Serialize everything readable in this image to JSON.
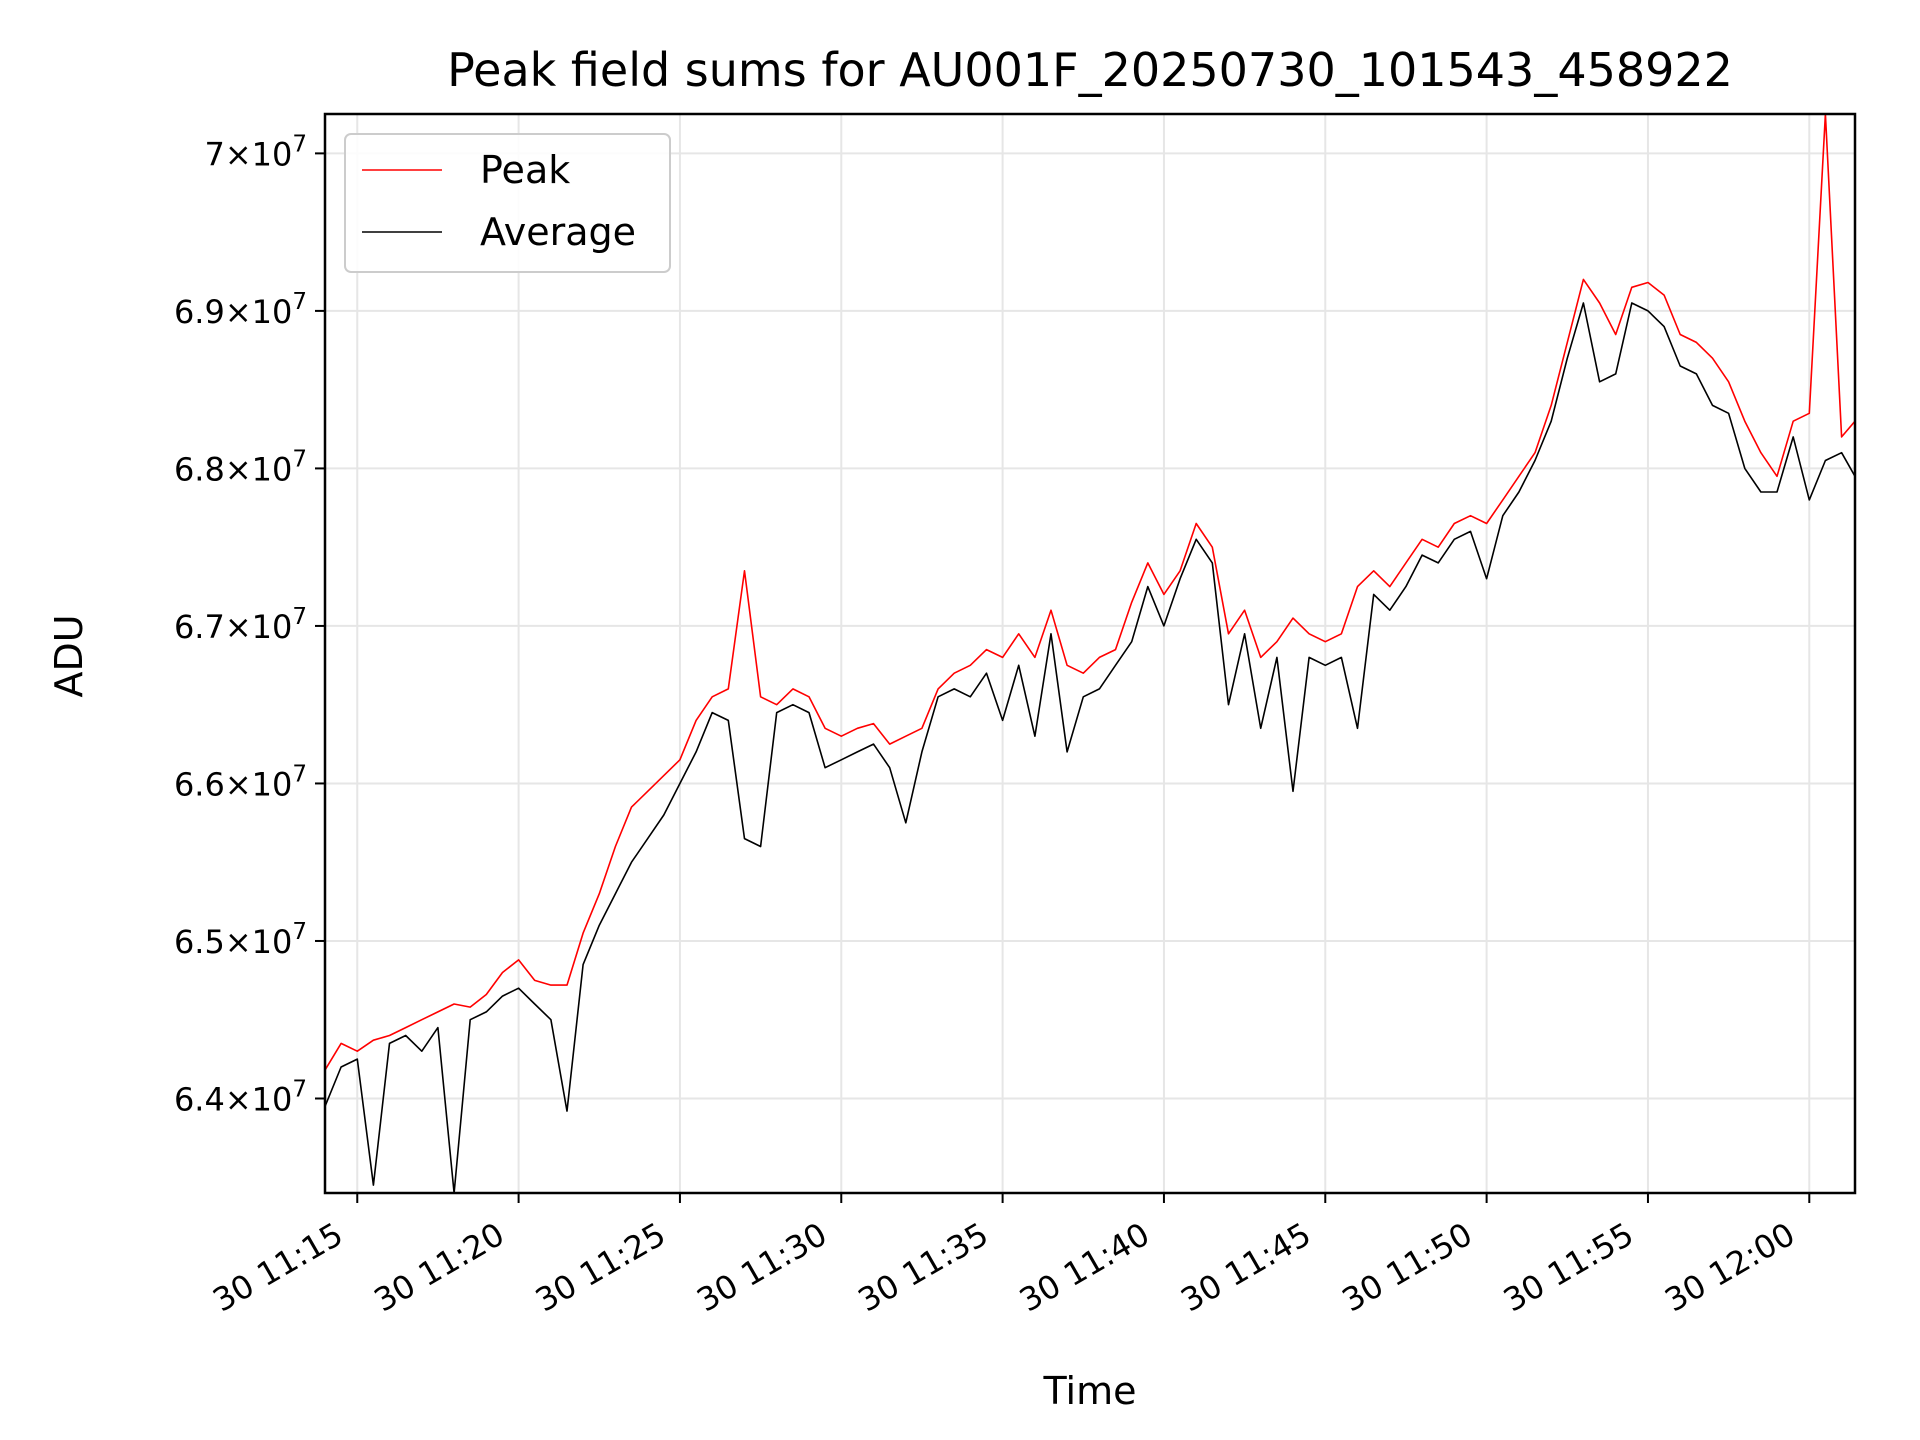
{
  "chart_data": {
    "type": "line",
    "title": "Peak field sums for AU001F_20250730_101543_458922",
    "xlabel": "Time",
    "ylabel": "ADU",
    "x_ticks": [
      "30 11:15",
      "30 11:20",
      "30 11:25",
      "30 11:30",
      "30 11:35",
      "30 11:40",
      "30 11:45",
      "30 11:50",
      "30 11:55",
      "30 12:00"
    ],
    "y_ticks": [
      {
        "mantissa": "6.4",
        "exp": "7"
      },
      {
        "mantissa": "6.5",
        "exp": "7"
      },
      {
        "mantissa": "6.6",
        "exp": "7"
      },
      {
        "mantissa": "6.7",
        "exp": "7"
      },
      {
        "mantissa": "6.8",
        "exp": "7"
      },
      {
        "mantissa": "6.9",
        "exp": "7"
      },
      {
        "mantissa": "7",
        "exp": "7"
      }
    ],
    "y_tick_values": [
      64000000,
      65000000,
      66000000,
      67000000,
      68000000,
      69000000,
      70000000
    ],
    "x_range": [
      "2025-07-30 11:14",
      "2025-07-30 12:01:25"
    ],
    "ylim": [
      63400000,
      70250000
    ],
    "grid": true,
    "legend_position": "upper-left",
    "series": [
      {
        "name": "Peak",
        "color": "#ff0000",
        "points": [
          [
            "11:14:00",
            64.18
          ],
          [
            "11:14:30",
            64.35
          ],
          [
            "11:15:00",
            64.3
          ],
          [
            "11:15:30",
            64.37
          ],
          [
            "11:16:00",
            64.4
          ],
          [
            "11:16:30",
            64.45
          ],
          [
            "11:17:00",
            64.5
          ],
          [
            "11:17:30",
            64.55
          ],
          [
            "11:18:00",
            64.6
          ],
          [
            "11:18:30",
            64.58
          ],
          [
            "11:19:00",
            64.66
          ],
          [
            "11:19:30",
            64.8
          ],
          [
            "11:20:00",
            64.88
          ],
          [
            "11:20:30",
            64.75
          ],
          [
            "11:21:00",
            64.72
          ],
          [
            "11:21:30",
            64.72
          ],
          [
            "11:22:00",
            65.05
          ],
          [
            "11:22:30",
            65.3
          ],
          [
            "11:23:00",
            65.6
          ],
          [
            "11:23:30",
            65.85
          ],
          [
            "11:24:00",
            65.95
          ],
          [
            "11:24:30",
            66.05
          ],
          [
            "11:25:00",
            66.15
          ],
          [
            "11:25:30",
            66.4
          ],
          [
            "11:26:00",
            66.55
          ],
          [
            "11:26:30",
            66.6
          ],
          [
            "11:27:00",
            67.35
          ],
          [
            "11:27:30",
            66.55
          ],
          [
            "11:28:00",
            66.5
          ],
          [
            "11:28:30",
            66.6
          ],
          [
            "11:29:00",
            66.55
          ],
          [
            "11:29:30",
            66.35
          ],
          [
            "11:30:00",
            66.3
          ],
          [
            "11:30:30",
            66.35
          ],
          [
            "11:31:00",
            66.38
          ],
          [
            "11:31:30",
            66.25
          ],
          [
            "11:32:00",
            66.3
          ],
          [
            "11:32:30",
            66.35
          ],
          [
            "11:33:00",
            66.6
          ],
          [
            "11:33:30",
            66.7
          ],
          [
            "11:34:00",
            66.75
          ],
          [
            "11:34:30",
            66.85
          ],
          [
            "11:35:00",
            66.8
          ],
          [
            "11:35:30",
            66.95
          ],
          [
            "11:36:00",
            66.8
          ],
          [
            "11:36:30",
            67.1
          ],
          [
            "11:37:00",
            66.75
          ],
          [
            "11:37:30",
            66.7
          ],
          [
            "11:38:00",
            66.8
          ],
          [
            "11:38:30",
            66.85
          ],
          [
            "11:39:00",
            67.15
          ],
          [
            "11:39:30",
            67.4
          ],
          [
            "11:40:00",
            67.2
          ],
          [
            "11:40:30",
            67.35
          ],
          [
            "11:41:00",
            67.65
          ],
          [
            "11:41:30",
            67.5
          ],
          [
            "11:42:00",
            66.95
          ],
          [
            "11:42:30",
            67.1
          ],
          [
            "11:43:00",
            66.8
          ],
          [
            "11:43:30",
            66.9
          ],
          [
            "11:44:00",
            67.05
          ],
          [
            "11:44:30",
            66.95
          ],
          [
            "11:45:00",
            66.9
          ],
          [
            "11:45:30",
            66.95
          ],
          [
            "11:46:00",
            67.25
          ],
          [
            "11:46:30",
            67.35
          ],
          [
            "11:47:00",
            67.25
          ],
          [
            "11:47:30",
            67.4
          ],
          [
            "11:48:00",
            67.55
          ],
          [
            "11:48:30",
            67.5
          ],
          [
            "11:49:00",
            67.65
          ],
          [
            "11:49:30",
            67.7
          ],
          [
            "11:50:00",
            67.65
          ],
          [
            "11:50:30",
            67.8
          ],
          [
            "11:51:00",
            67.95
          ],
          [
            "11:51:30",
            68.1
          ],
          [
            "11:52:00",
            68.4
          ],
          [
            "11:52:30",
            68.8
          ],
          [
            "11:53:00",
            69.2
          ],
          [
            "11:53:30",
            69.05
          ],
          [
            "11:54:00",
            68.85
          ],
          [
            "11:54:30",
            69.15
          ],
          [
            "11:55:00",
            69.18
          ],
          [
            "11:55:30",
            69.1
          ],
          [
            "11:56:00",
            68.85
          ],
          [
            "11:56:30",
            68.8
          ],
          [
            "11:57:00",
            68.7
          ],
          [
            "11:57:30",
            68.55
          ],
          [
            "11:58:00",
            68.3
          ],
          [
            "11:58:30",
            68.1
          ],
          [
            "11:59:00",
            67.95
          ],
          [
            "11:59:30",
            68.3
          ],
          [
            "12:00:00",
            68.35
          ],
          [
            "12:00:30",
            70.25
          ],
          [
            "12:01:00",
            68.2
          ],
          [
            "12:01:25",
            68.3
          ]
        ]
      },
      {
        "name": "Average",
        "color": "#000000",
        "points": [
          [
            "11:14:00",
            63.95
          ],
          [
            "11:14:30",
            64.2
          ],
          [
            "11:15:00",
            64.25
          ],
          [
            "11:15:30",
            63.45
          ],
          [
            "11:16:00",
            64.35
          ],
          [
            "11:16:30",
            64.4
          ],
          [
            "11:17:00",
            64.3
          ],
          [
            "11:17:30",
            64.45
          ],
          [
            "11:18:00",
            63.4
          ],
          [
            "11:18:30",
            64.5
          ],
          [
            "11:19:00",
            64.55
          ],
          [
            "11:19:30",
            64.65
          ],
          [
            "11:20:00",
            64.7
          ],
          [
            "11:20:30",
            64.6
          ],
          [
            "11:21:00",
            64.5
          ],
          [
            "11:21:30",
            63.92
          ],
          [
            "11:22:00",
            64.85
          ],
          [
            "11:22:30",
            65.1
          ],
          [
            "11:23:00",
            65.3
          ],
          [
            "11:23:30",
            65.5
          ],
          [
            "11:24:00",
            65.65
          ],
          [
            "11:24:30",
            65.8
          ],
          [
            "11:25:00",
            66.0
          ],
          [
            "11:25:30",
            66.2
          ],
          [
            "11:26:00",
            66.45
          ],
          [
            "11:26:30",
            66.4
          ],
          [
            "11:27:00",
            65.65
          ],
          [
            "11:27:30",
            65.6
          ],
          [
            "11:28:00",
            66.45
          ],
          [
            "11:28:30",
            66.5
          ],
          [
            "11:29:00",
            66.45
          ],
          [
            "11:29:30",
            66.1
          ],
          [
            "11:30:00",
            66.15
          ],
          [
            "11:30:30",
            66.2
          ],
          [
            "11:31:00",
            66.25
          ],
          [
            "11:31:30",
            66.1
          ],
          [
            "11:32:00",
            65.75
          ],
          [
            "11:32:30",
            66.2
          ],
          [
            "11:33:00",
            66.55
          ],
          [
            "11:33:30",
            66.6
          ],
          [
            "11:34:00",
            66.55
          ],
          [
            "11:34:30",
            66.7
          ],
          [
            "11:35:00",
            66.4
          ],
          [
            "11:35:30",
            66.75
          ],
          [
            "11:36:00",
            66.3
          ],
          [
            "11:36:30",
            66.95
          ],
          [
            "11:37:00",
            66.2
          ],
          [
            "11:37:30",
            66.55
          ],
          [
            "11:38:00",
            66.6
          ],
          [
            "11:38:30",
            66.75
          ],
          [
            "11:39:00",
            66.9
          ],
          [
            "11:39:30",
            67.25
          ],
          [
            "11:40:00",
            67.0
          ],
          [
            "11:40:30",
            67.3
          ],
          [
            "11:41:00",
            67.55
          ],
          [
            "11:41:30",
            67.4
          ],
          [
            "11:42:00",
            66.5
          ],
          [
            "11:42:30",
            66.95
          ],
          [
            "11:43:00",
            66.35
          ],
          [
            "11:43:30",
            66.8
          ],
          [
            "11:44:00",
            65.95
          ],
          [
            "11:44:30",
            66.8
          ],
          [
            "11:45:00",
            66.75
          ],
          [
            "11:45:30",
            66.8
          ],
          [
            "11:46:00",
            66.35
          ],
          [
            "11:46:30",
            67.2
          ],
          [
            "11:47:00",
            67.1
          ],
          [
            "11:47:30",
            67.25
          ],
          [
            "11:48:00",
            67.45
          ],
          [
            "11:48:30",
            67.4
          ],
          [
            "11:49:00",
            67.55
          ],
          [
            "11:49:30",
            67.6
          ],
          [
            "11:50:00",
            67.3
          ],
          [
            "11:50:30",
            67.7
          ],
          [
            "11:51:00",
            67.85
          ],
          [
            "11:51:30",
            68.05
          ],
          [
            "11:52:00",
            68.3
          ],
          [
            "11:52:30",
            68.7
          ],
          [
            "11:53:00",
            69.05
          ],
          [
            "11:53:30",
            68.55
          ],
          [
            "11:54:00",
            68.6
          ],
          [
            "11:54:30",
            69.05
          ],
          [
            "11:55:00",
            69.0
          ],
          [
            "11:55:30",
            68.9
          ],
          [
            "11:56:00",
            68.65
          ],
          [
            "11:56:30",
            68.6
          ],
          [
            "11:57:00",
            68.4
          ],
          [
            "11:57:30",
            68.35
          ],
          [
            "11:58:00",
            68.0
          ],
          [
            "11:58:30",
            67.85
          ],
          [
            "11:59:00",
            67.85
          ],
          [
            "11:59:30",
            68.2
          ],
          [
            "12:00:00",
            67.8
          ],
          [
            "12:00:30",
            68.05
          ],
          [
            "12:01:00",
            68.1
          ],
          [
            "12:01:25",
            67.95
          ]
        ]
      }
    ]
  }
}
